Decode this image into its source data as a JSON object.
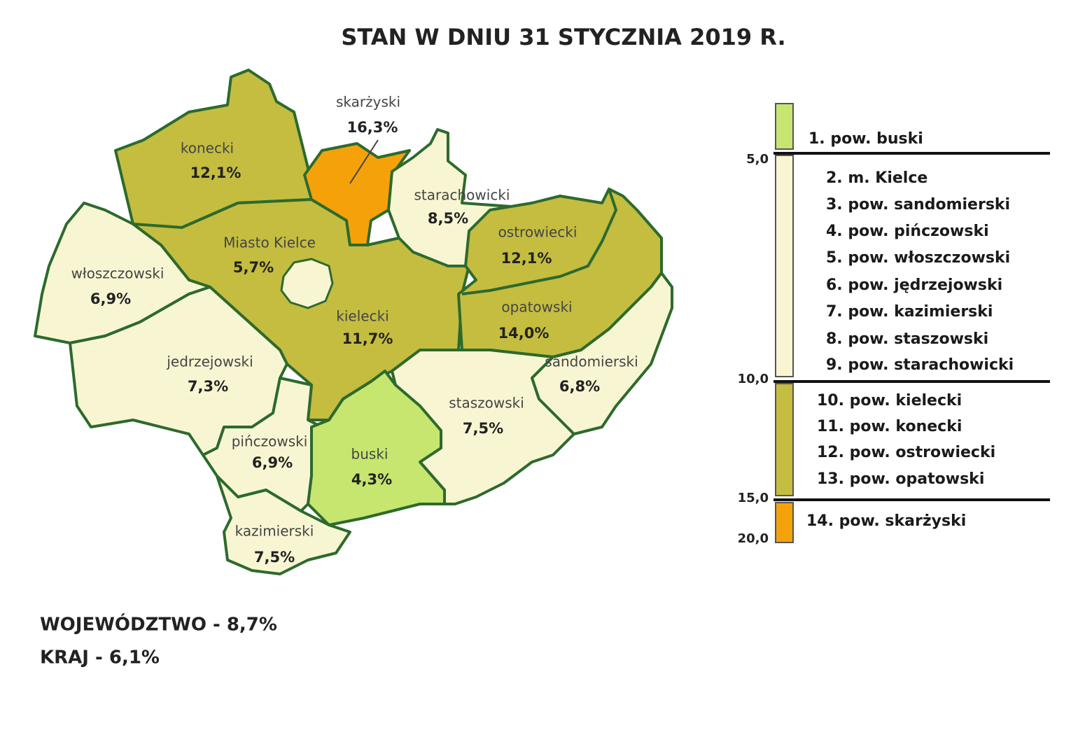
{
  "title": "STAN W DNIU 31 STYCZNIA 2019 R.",
  "regions": [
    {
      "name": "konecki",
      "rate": "12,1%"
    },
    {
      "name": "skarżyski",
      "rate": "16,3%"
    },
    {
      "name": "starachowicki",
      "rate": "8,5%"
    },
    {
      "name": "Miasto Kielce",
      "rate": "5,7%"
    },
    {
      "name": "ostrowiecki",
      "rate": "12,1%"
    },
    {
      "name": "włoszczowski",
      "rate": "6,9%"
    },
    {
      "name": "kielecki",
      "rate": "11,7%"
    },
    {
      "name": "opatowski",
      "rate": "14,0%"
    },
    {
      "name": "jedrzejowski",
      "rate": "7,3%"
    },
    {
      "name": "sandomierski",
      "rate": "6,8%"
    },
    {
      "name": "staszowski",
      "rate": "7,5%"
    },
    {
      "name": "pińczowski",
      "rate": "6,9%"
    },
    {
      "name": "buski",
      "rate": "4,3%"
    },
    {
      "name": "kazimierski",
      "rate": "7,5%"
    }
  ],
  "legend": {
    "ticks": [
      "5,0",
      "10,0",
      "15,0",
      "20,0"
    ],
    "items": [
      "1. pow. buski",
      "2. m. Kielce",
      "3. pow. sandomierski",
      "4. pow. pińczowski",
      "5. pow. włoszczowski",
      "6. pow. jędrzejowski",
      "7. pow. kazimierski",
      "8. pow. staszowski",
      "9. pow. starachowicki",
      "10. pow. kielecki",
      "11. pow. konecki",
      "12. pow. ostrowiecki",
      "13. pow. opatowski",
      "14. pow. skarżyski"
    ]
  },
  "summary": {
    "voivodeship": "WOJEWÓDZTWO - 8,7%",
    "country": "KRAJ - 6,1%"
  }
}
